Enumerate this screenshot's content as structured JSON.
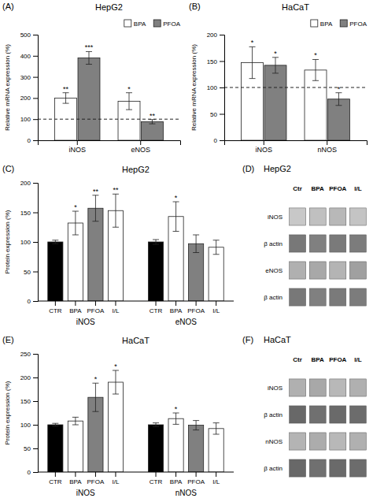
{
  "chart_data": [
    {
      "type": "bar",
      "panel_label": "(A)",
      "title": "HepG2",
      "ylabel": "Relative mRNA expression (%)",
      "categories": [
        "iNOS",
        "eNOS"
      ],
      "series": [
        {
          "name": "BPA",
          "color": "#ffffff",
          "values": [
            200,
            185
          ],
          "errors": [
            25,
            40
          ],
          "annotations": [
            "**",
            "*"
          ]
        },
        {
          "name": "PFOA",
          "color": "#808080",
          "values": [
            390,
            88
          ],
          "errors": [
            30,
            10
          ],
          "annotations": [
            "***",
            "**"
          ]
        }
      ],
      "ylim": [
        0,
        500
      ],
      "yticks": [
        0,
        100,
        200,
        300,
        400,
        500
      ],
      "reference_line": 100,
      "legend": "upper right"
    },
    {
      "type": "bar",
      "panel_label": "(B)",
      "title": "HaCaT",
      "ylabel": "Relative mRNA expression (%)",
      "categories": [
        "iNOS",
        "nNOS"
      ],
      "series": [
        {
          "name": "BPA",
          "color": "#ffffff",
          "values": [
            147,
            133
          ],
          "errors": [
            30,
            20
          ],
          "annotations": [
            "*",
            "*"
          ]
        },
        {
          "name": "PFOA",
          "color": "#808080",
          "values": [
            142,
            78
          ],
          "errors": [
            15,
            12
          ],
          "annotations": [
            "*",
            "*"
          ]
        }
      ],
      "ylim": [
        0,
        200
      ],
      "yticks": [
        0,
        50,
        100,
        150,
        200
      ],
      "reference_line": 100,
      "legend": "upper right"
    },
    {
      "type": "bar",
      "panel_label": "(C)",
      "title": "HepG2",
      "ylabel": "Protein expression (%)",
      "categories": [
        "CTR",
        "BPA",
        "PFOA",
        "I/L"
      ],
      "colors": [
        "#000000",
        "#ffffff",
        "#808080",
        "#ffffff"
      ],
      "series": [
        {
          "name": "iNOS",
          "values": [
            100,
            132,
            157,
            153
          ],
          "errors": [
            3,
            20,
            22,
            28
          ],
          "annotations": [
            null,
            "*",
            "**",
            "**"
          ]
        },
        {
          "name": "eNOS",
          "values": [
            100,
            143,
            97,
            91
          ],
          "errors": [
            4,
            25,
            15,
            12
          ],
          "annotations": [
            null,
            "*",
            null,
            null
          ]
        }
      ],
      "ylim": [
        0,
        200
      ],
      "yticks": [
        0,
        50,
        100,
        150,
        200
      ]
    },
    {
      "type": "blot",
      "panel_label": "(D)",
      "title": "HepG2",
      "categories": [
        "Ctr",
        "BPA",
        "PFOA",
        "I/L"
      ],
      "rows": [
        "iNOS",
        "β actin",
        "eNOS",
        "β actin"
      ],
      "colors": [
        [
          "#c8c8c8",
          "#c0c0c0",
          "#b8b8b8",
          "#c4c4c4"
        ],
        [
          "#787878",
          "#808080",
          "#7a7a7a",
          "#7c7c7c"
        ],
        [
          "#b0b0b0",
          "#a8a8a8",
          "#b4b4b4",
          "#a0a0a0"
        ],
        [
          "#787878",
          "#808080",
          "#7a7a7a",
          "#7c7c7c"
        ]
      ]
    },
    {
      "type": "bar",
      "panel_label": "(E)",
      "title": "HaCaT",
      "ylabel": "Protein expression (%)",
      "categories": [
        "CTR",
        "BPA",
        "PFOA",
        "I/L"
      ],
      "colors": [
        "#000000",
        "#ffffff",
        "#808080",
        "#ffffff"
      ],
      "series": [
        {
          "name": "iNOS",
          "values": [
            100,
            108,
            158,
            190
          ],
          "errors": [
            3,
            8,
            30,
            25
          ],
          "annotations": [
            null,
            null,
            "*",
            "*"
          ]
        },
        {
          "name": "nNOS",
          "values": [
            100,
            113,
            99,
            92
          ],
          "errors": [
            4,
            12,
            10,
            12
          ],
          "annotations": [
            null,
            "*",
            null,
            null
          ]
        }
      ],
      "ylim": [
        0,
        250
      ],
      "yticks": [
        0,
        50,
        100,
        150,
        200,
        250
      ]
    },
    {
      "type": "blot",
      "panel_label": "(F)",
      "title": "HaCaT",
      "categories": [
        "Ctr",
        "BPA",
        "PFOA",
        "I/L"
      ],
      "rows": [
        "iNOS",
        "β actin",
        "nNOS",
        "β actin"
      ],
      "colors": [
        [
          "#b0b0b0",
          "#a8a8a8",
          "#b8b8b8",
          "#b0b0b0"
        ],
        [
          "#686868",
          "#707070",
          "#6a6a6a",
          "#6c6c6c"
        ],
        [
          "#b4b4b4",
          "#acacac",
          "#b8b8b8",
          "#b0b0b0"
        ],
        [
          "#686868",
          "#707070",
          "#6a6a6a",
          "#6c6c6c"
        ]
      ]
    }
  ]
}
